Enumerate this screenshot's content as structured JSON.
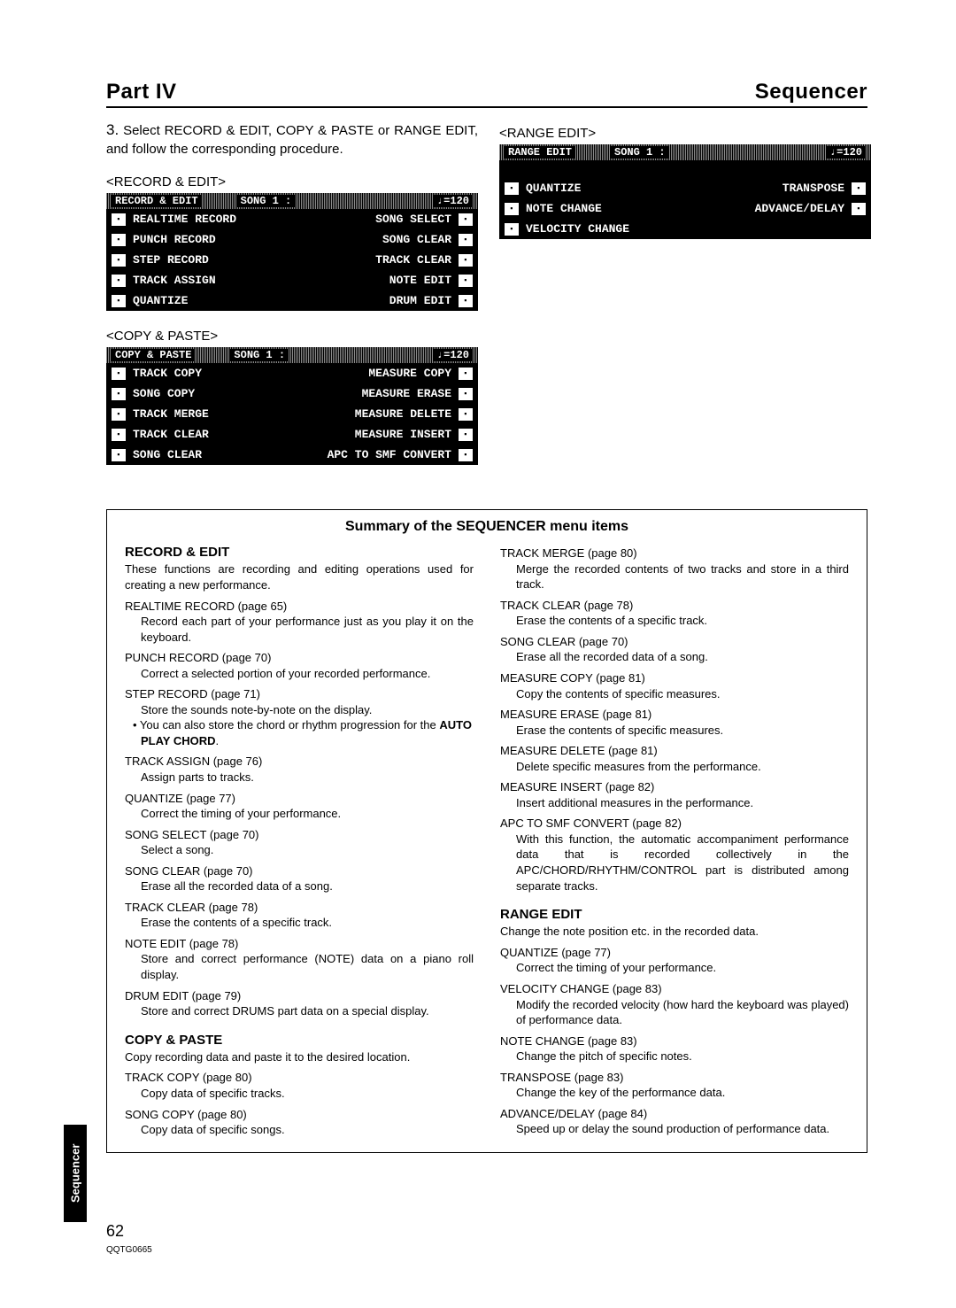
{
  "header": {
    "left": "Part IV",
    "right": "Sequencer"
  },
  "step": {
    "num": "3.",
    "text": "Select RECORD & EDIT, COPY & PASTE or RANGE EDIT, and follow the corresponding procedure."
  },
  "recordEdit": {
    "label": "<RECORD & EDIT>",
    "title1": "RECORD & EDIT",
    "title2": "SONG 1 :",
    "tempo": "♩=120",
    "rows": [
      {
        "l": "REALTIME RECORD",
        "r": "SONG SELECT"
      },
      {
        "l": "PUNCH RECORD",
        "r": "SONG CLEAR"
      },
      {
        "l": "STEP RECORD",
        "r": "TRACK CLEAR"
      },
      {
        "l": "TRACK ASSIGN",
        "r": "NOTE EDIT"
      },
      {
        "l": "QUANTIZE",
        "r": "DRUM EDIT"
      }
    ]
  },
  "copyPaste": {
    "label": "<COPY & PASTE>",
    "title1": "COPY & PASTE",
    "title2": "SONG 1 :",
    "tempo": "♩=120",
    "rows": [
      {
        "l": "TRACK COPY",
        "r": "MEASURE COPY"
      },
      {
        "l": "SONG COPY",
        "r": "MEASURE ERASE"
      },
      {
        "l": "TRACK MERGE",
        "r": "MEASURE DELETE"
      },
      {
        "l": "TRACK CLEAR",
        "r": "MEASURE INSERT"
      },
      {
        "l": "SONG CLEAR",
        "r": "APC TO SMF CONVERT"
      }
    ]
  },
  "rangeEdit": {
    "label": "<RANGE EDIT>",
    "title1": "RANGE EDIT",
    "title2": "SONG 1 :",
    "tempo": "♩=120",
    "rows": [
      {
        "l": "QUANTIZE",
        "r": "TRANSPOSE"
      },
      {
        "l": "NOTE CHANGE",
        "r": "ADVANCE/DELAY"
      },
      {
        "l": "VELOCITY CHANGE",
        "r": ""
      }
    ]
  },
  "summaryTitle": "Summary of the SEQUENCER menu items",
  "left": {
    "h1": "RECORD & EDIT",
    "intro": "These functions are recording and editing operations used for creating a new performance.",
    "items": [
      {
        "h": "REALTIME RECORD (page 65)",
        "b": "Record each part of your performance just as you play it on the keyboard."
      },
      {
        "h": "PUNCH RECORD (page 70)",
        "b": "Correct a selected portion of your recorded performance."
      },
      {
        "h": "STEP RECORD (page 71)",
        "b": "Store the sounds note-by-note on the display."
      },
      {
        "bullet": "• You can also store the chord or rhythm progression for the AUTO PLAY CHORD."
      },
      {
        "h": "TRACK ASSIGN (page 76)",
        "b": "Assign parts to tracks."
      },
      {
        "h": "QUANTIZE (page 77)",
        "b": "Correct the timing of your performance."
      },
      {
        "h": "SONG SELECT (page 70)",
        "b": "Select a song."
      },
      {
        "h": "SONG CLEAR (page 70)",
        "b": "Erase all the recorded data of a song."
      },
      {
        "h": "TRACK CLEAR (page 78)",
        "b": "Erase the contents of a specific track."
      },
      {
        "h": "NOTE EDIT (page 78)",
        "b": "Store and correct performance (NOTE) data on a piano roll display."
      },
      {
        "h": "DRUM EDIT (page 79)",
        "b": "Store and correct DRUMS part data on a special display."
      }
    ],
    "h2": "COPY & PASTE",
    "intro2": "Copy recording data and paste it to the desired location.",
    "items2": [
      {
        "h": "TRACK COPY (page 80)",
        "b": "Copy data of specific tracks."
      },
      {
        "h": "SONG COPY (page 80)",
        "b": "Copy data of specific songs."
      }
    ]
  },
  "right": {
    "items": [
      {
        "h": "TRACK MERGE (page 80)",
        "b": "Merge the recorded contents of two tracks and store in a third track."
      },
      {
        "h": "TRACK CLEAR (page 78)",
        "b": "Erase the contents of a specific track."
      },
      {
        "h": "SONG CLEAR (page 70)",
        "b": "Erase all the recorded data of a song."
      },
      {
        "h": "MEASURE COPY (page 81)",
        "b": "Copy the contents of specific measures."
      },
      {
        "h": "MEASURE ERASE (page 81)",
        "b": "Erase the contents of specific measures."
      },
      {
        "h": "MEASURE DELETE (page 81)",
        "b": "Delete specific measures from the performance."
      },
      {
        "h": "MEASURE INSERT (page 82)",
        "b": "Insert additional measures in the performance."
      },
      {
        "h": "APC TO SMF CONVERT (page 82)",
        "b": "With this function, the automatic accompaniment performance data that is recorded collectively in the APC/CHORD/RHYTHM/CONTROL part is distributed among separate tracks."
      }
    ],
    "h3": "RANGE EDIT",
    "intro3": "Change the note position etc. in the recorded data.",
    "items3": [
      {
        "h": "QUANTIZE (page 77)",
        "b": "Correct the timing of your performance."
      },
      {
        "h": "VELOCITY CHANGE (page 83)",
        "b": "Modify the recorded velocity (how hard the keyboard was played) of performance data."
      },
      {
        "h": "NOTE CHANGE (page 83)",
        "b": "Change the pitch of specific notes."
      },
      {
        "h": "TRANSPOSE (page 83)",
        "b": "Change the key of the performance data."
      },
      {
        "h": "ADVANCE/DELAY (page 84)",
        "b": "Speed up or delay the sound production of performance data."
      }
    ]
  },
  "sidetab": "Sequencer",
  "footer": {
    "page": "62",
    "code": "QQTG0665"
  }
}
